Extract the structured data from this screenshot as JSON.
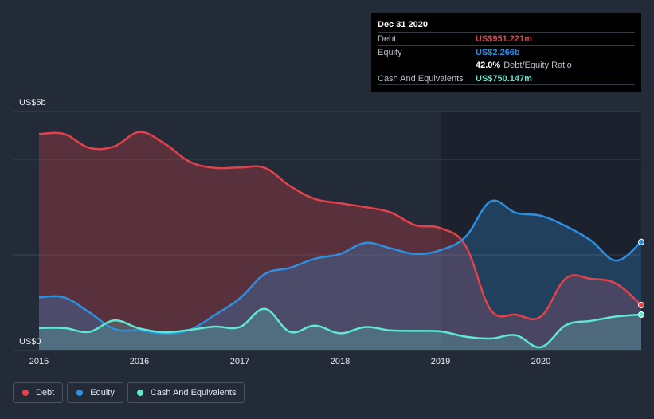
{
  "colors": {
    "debt": "#e5414a",
    "equity": "#2d8fe0",
    "cash": "#5fe8d2",
    "background": "#232b38",
    "plot_bg": "#1c222d"
  },
  "tooltip": {
    "date": "Dec 31 2020",
    "debt_label": "Debt",
    "debt_value": "US$951.221m",
    "equity_label": "Equity",
    "equity_value": "US$2.266b",
    "ratio_value": "42.0%",
    "ratio_label": "Debt/Equity Ratio",
    "cash_label": "Cash And Equivalents",
    "cash_value": "US$750.147m"
  },
  "legend": {
    "debt_label": "Debt",
    "equity_label": "Equity",
    "cash_label": "Cash And Equivalents"
  },
  "chart_data": {
    "type": "area",
    "y_unit_labels": {
      "top": "US$5b",
      "bottom": "US$0"
    },
    "ylim": [
      0,
      5
    ],
    "xlim": [
      2015,
      2021
    ],
    "x_ticks": [
      2015,
      2016,
      2017,
      2018,
      2019,
      2020
    ],
    "x_tick_labels": [
      "2015",
      "2016",
      "2017",
      "2018",
      "2019",
      "2020"
    ],
    "grid": true,
    "legend_position": "bottom-left",
    "series": [
      {
        "name": "Debt",
        "color_key": "debt",
        "x": [
          2015.0,
          2015.25,
          2015.5,
          2015.75,
          2016.0,
          2016.25,
          2016.5,
          2016.75,
          2017.0,
          2017.25,
          2017.5,
          2017.75,
          2018.0,
          2018.25,
          2018.5,
          2018.75,
          2019.0,
          2019.25,
          2019.5,
          2019.75,
          2020.0,
          2020.25,
          2020.5,
          2020.75,
          2021.0
        ],
        "y": [
          4.53,
          4.53,
          4.24,
          4.27,
          4.57,
          4.33,
          3.95,
          3.82,
          3.83,
          3.82,
          3.44,
          3.17,
          3.08,
          3.0,
          2.89,
          2.62,
          2.56,
          2.19,
          0.85,
          0.75,
          0.71,
          1.51,
          1.5,
          1.4,
          0.95
        ]
      },
      {
        "name": "Equity",
        "color_key": "equity",
        "x": [
          2015.0,
          2015.25,
          2015.5,
          2015.75,
          2016.0,
          2016.25,
          2016.5,
          2016.75,
          2017.0,
          2017.25,
          2017.5,
          2017.75,
          2018.0,
          2018.25,
          2018.5,
          2018.75,
          2019.0,
          2019.25,
          2019.5,
          2019.75,
          2020.0,
          2020.25,
          2020.5,
          2020.75,
          2021.0
        ],
        "y": [
          1.11,
          1.11,
          0.8,
          0.45,
          0.42,
          0.35,
          0.43,
          0.74,
          1.09,
          1.6,
          1.73,
          1.92,
          2.02,
          2.25,
          2.14,
          2.02,
          2.1,
          2.38,
          3.12,
          2.88,
          2.82,
          2.6,
          2.3,
          1.88,
          2.27
        ]
      },
      {
        "name": "Cash And Equivalents",
        "color_key": "cash",
        "x": [
          2015.0,
          2015.25,
          2015.5,
          2015.75,
          2016.0,
          2016.25,
          2016.5,
          2016.75,
          2017.0,
          2017.25,
          2017.5,
          2017.75,
          2018.0,
          2018.25,
          2018.5,
          2018.75,
          2019.0,
          2019.25,
          2019.5,
          2019.75,
          2020.0,
          2020.25,
          2020.5,
          2020.75,
          2021.0
        ],
        "y": [
          0.47,
          0.47,
          0.39,
          0.63,
          0.46,
          0.38,
          0.43,
          0.5,
          0.49,
          0.87,
          0.39,
          0.52,
          0.36,
          0.49,
          0.42,
          0.41,
          0.4,
          0.29,
          0.25,
          0.32,
          0.07,
          0.53,
          0.62,
          0.71,
          0.75
        ]
      }
    ]
  }
}
